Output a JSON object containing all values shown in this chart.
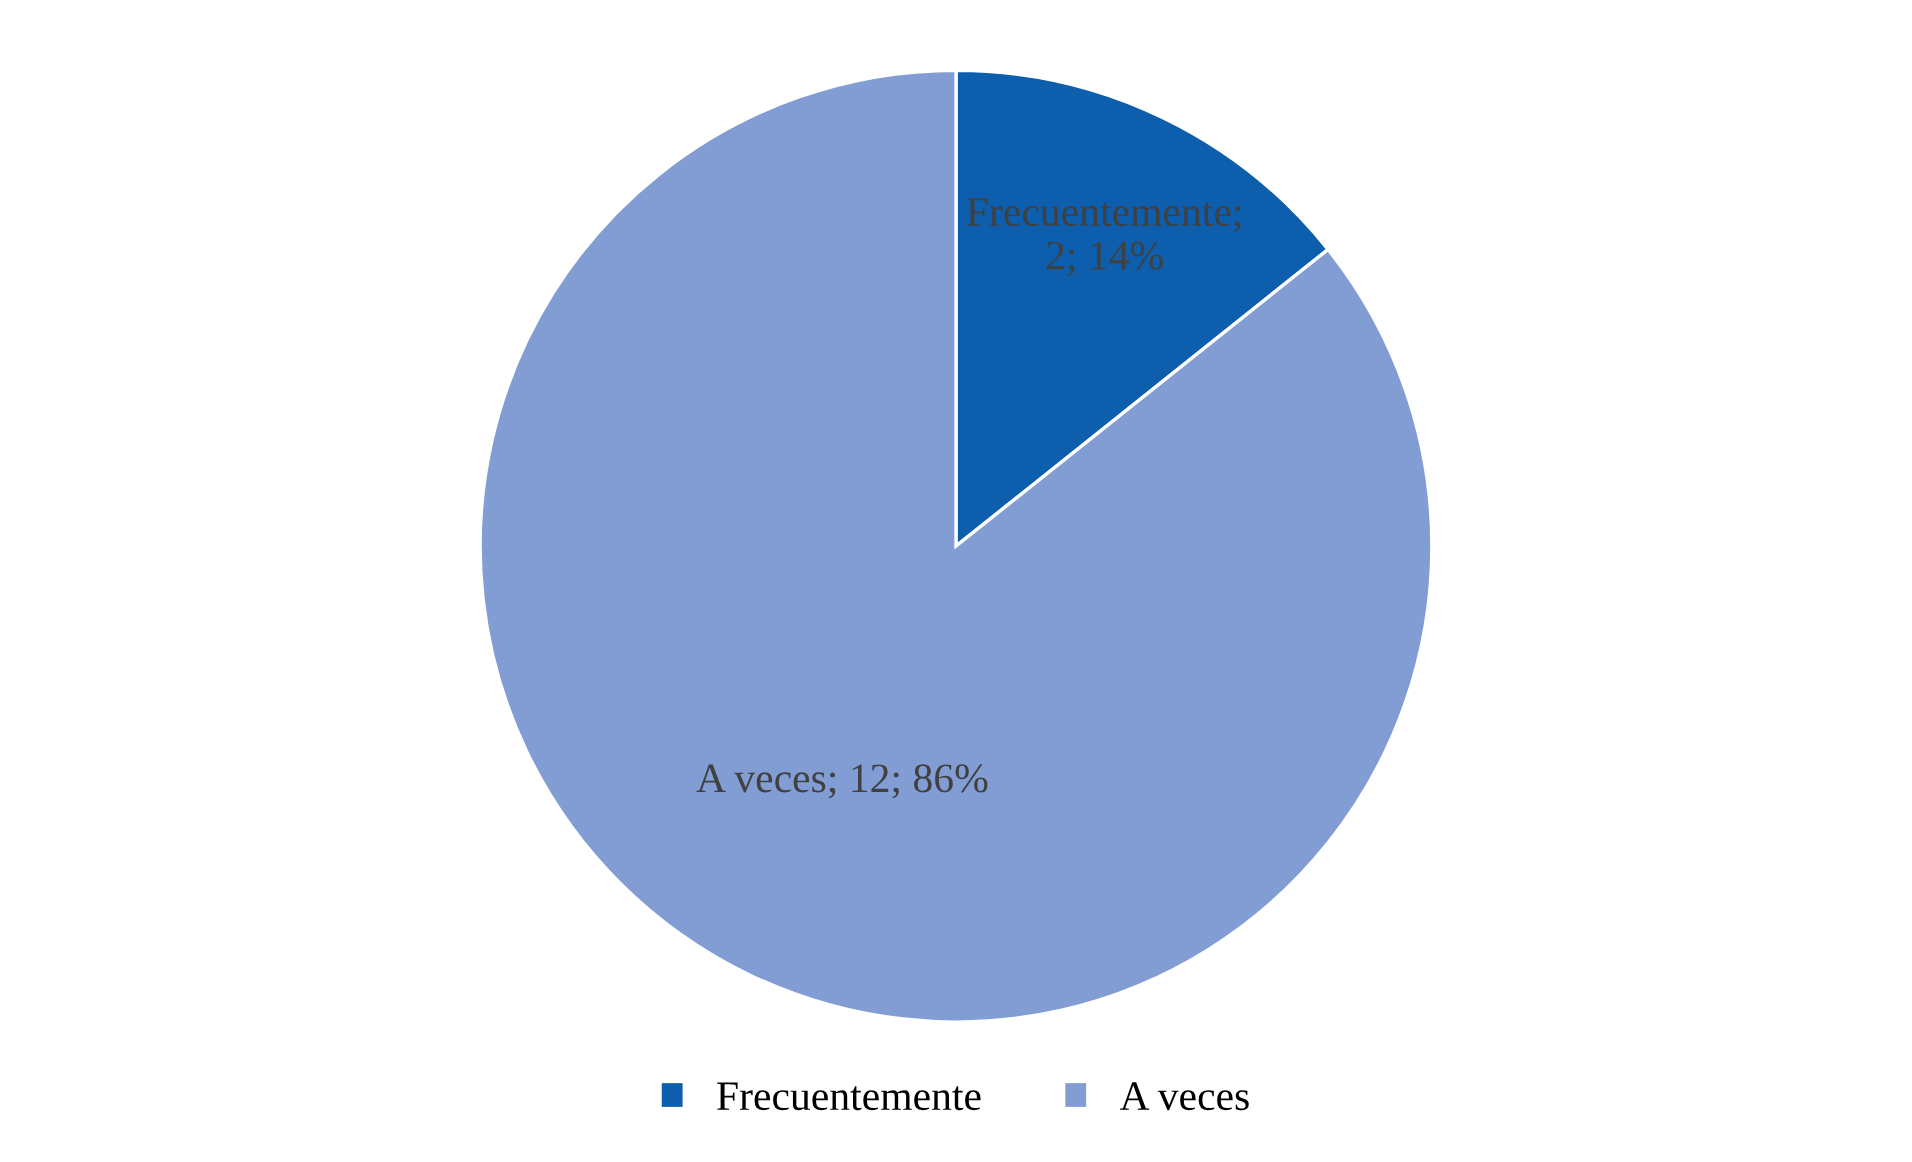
{
  "chart_data": {
    "type": "pie",
    "categories": [
      "Frecuentemente",
      "A veces"
    ],
    "values": [
      2,
      12
    ],
    "colors": [
      "#0e5eae",
      "#819dd4"
    ],
    "value_labels": [
      "Frecuentemente;\n2; 14%",
      "A veces; 12; 86%"
    ],
    "legend": "bottom"
  }
}
